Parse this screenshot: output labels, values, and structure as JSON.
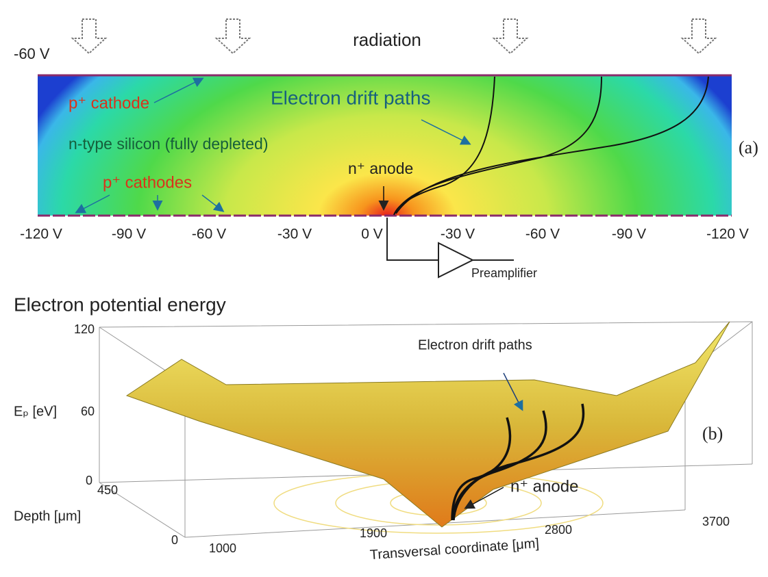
{
  "panel_a": {
    "supply": "-60 V",
    "radiation": "radiation",
    "cathode": "p⁺ cathode",
    "drift_paths": "Electron drift paths",
    "silicon": "n-type silicon (fully depleted)",
    "label": "(a)",
    "anode": "n⁺ anode",
    "cathodes": "p⁺ cathodes",
    "voltages": [
      "-120 V",
      "-90 V",
      "-60 V",
      "-30 V",
      "0 V",
      "-30 V",
      "-60 V",
      "-90 V",
      "-120 V"
    ],
    "preamplifier": "Preamplifier"
  },
  "panel_b": {
    "title": "Electron potential energy",
    "z_label": "Eₚ [eV]",
    "z_ticks": [
      "120",
      "60",
      "0"
    ],
    "depth_label": "Depth [μm]",
    "depth_ticks": [
      "450",
      "0"
    ],
    "x_label": "Transversal coordinate [μm]",
    "x_ticks": [
      "1000",
      "1900",
      "2800",
      "3700"
    ],
    "drift_paths": "Electron drift paths",
    "label": "(b)",
    "anode": "n⁺ anode"
  }
}
